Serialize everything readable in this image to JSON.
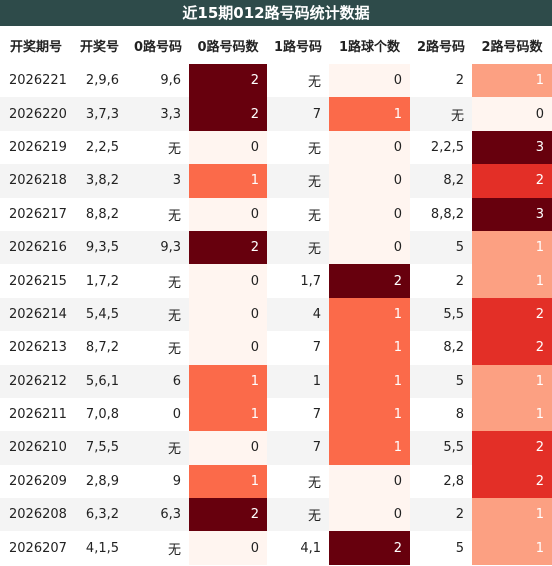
{
  "table": {
    "title": "近15期012路号码统计数据",
    "columns": [
      "开奖期号",
      "开奖号",
      "0路号码",
      "0路号码数",
      "1路号码",
      "1路球个数",
      "2路号码",
      "2路号码数"
    ],
    "heat_columns": [
      3,
      5,
      7
    ],
    "colormap": "Reds",
    "rows": [
      [
        "2026221",
        "2,9,6",
        "9,6",
        2,
        "无",
        0,
        "2",
        1
      ],
      [
        "2026220",
        "3,7,3",
        "3,3",
        2,
        "7",
        1,
        "无",
        0
      ],
      [
        "2026219",
        "2,2,5",
        "无",
        0,
        "无",
        0,
        "2,2,5",
        3
      ],
      [
        "2026218",
        "3,8,2",
        "3",
        1,
        "无",
        0,
        "8,2",
        2
      ],
      [
        "2026217",
        "8,8,2",
        "无",
        0,
        "无",
        0,
        "8,8,2",
        3
      ],
      [
        "2026216",
        "9,3,5",
        "9,3",
        2,
        "无",
        0,
        "5",
        1
      ],
      [
        "2026215",
        "1,7,2",
        "无",
        0,
        "1,7",
        2,
        "2",
        1
      ],
      [
        "2026214",
        "5,4,5",
        "无",
        0,
        "4",
        1,
        "5,5",
        2
      ],
      [
        "2026213",
        "8,7,2",
        "无",
        0,
        "7",
        1,
        "8,2",
        2
      ],
      [
        "2026212",
        "5,6,1",
        "6",
        1,
        "1",
        1,
        "5",
        1
      ],
      [
        "2026211",
        "7,0,8",
        "0",
        1,
        "7",
        1,
        "8",
        1
      ],
      [
        "2026210",
        "7,5,5",
        "无",
        0,
        "7",
        1,
        "5,5",
        2
      ],
      [
        "2026209",
        "2,8,9",
        "9",
        1,
        "无",
        0,
        "2,8",
        2
      ],
      [
        "2026208",
        "6,3,2",
        "6,3",
        2,
        "无",
        0,
        "2",
        1
      ],
      [
        "2026207",
        "4,1,5",
        "无",
        0,
        "4,1",
        2,
        "5",
        1
      ]
    ]
  }
}
